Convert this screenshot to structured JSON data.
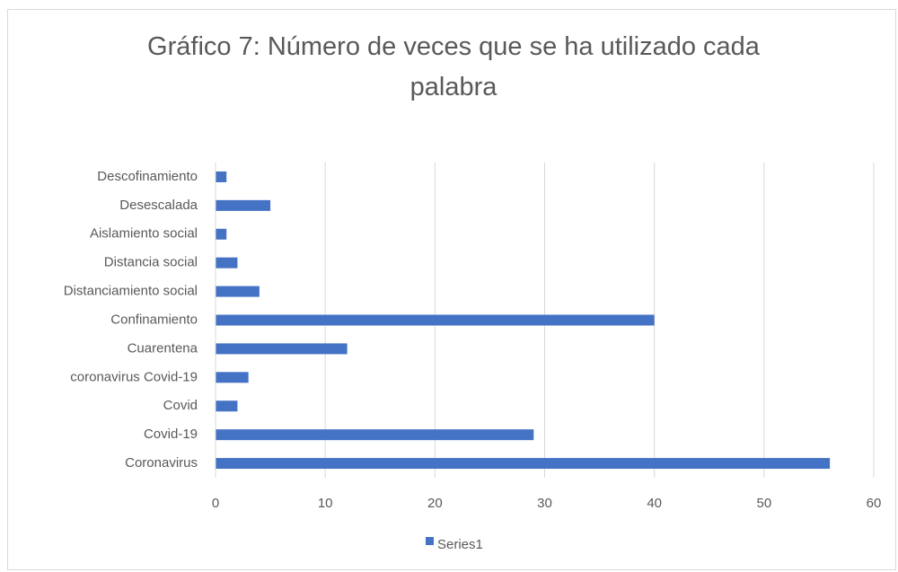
{
  "chart_data": {
    "type": "bar",
    "orientation": "horizontal",
    "title": "Gráfico 7: Número de veces que se ha utilizado cada palabra",
    "categories": [
      "Coronavirus",
      "Covid-19",
      "Covid",
      "coronavirus Covid-19",
      "Cuarentena",
      "Confinamiento",
      "Distanciamiento social",
      "Distancia social",
      "Aislamiento social",
      "Desescalada",
      "Descofinamiento"
    ],
    "series": [
      {
        "name": "Series1",
        "color": "#4472c4",
        "values": [
          56,
          29,
          2,
          3,
          12,
          40,
          4,
          2,
          1,
          5,
          1
        ]
      }
    ],
    "xlim": [
      0,
      60
    ],
    "xticks": [
      0,
      10,
      20,
      30,
      40,
      50,
      60
    ],
    "grid": true,
    "legend": "bottom"
  }
}
